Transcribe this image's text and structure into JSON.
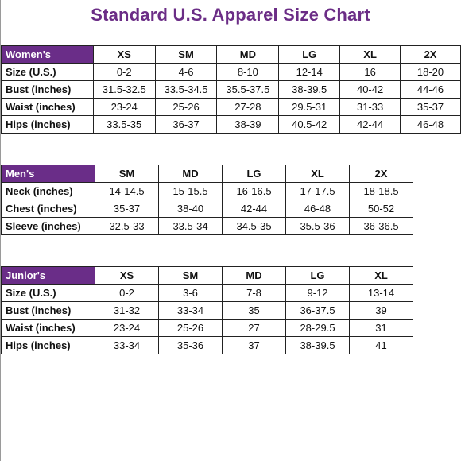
{
  "title": "Standard U.S. Apparel Size Chart",
  "accent_color": "#6a2d88",
  "women": {
    "section": "Women's",
    "sizes": [
      "XS",
      "SM",
      "MD",
      "LG",
      "XL",
      "2X"
    ],
    "rows": [
      {
        "label": "Size (U.S.)",
        "values": [
          "0-2",
          "4-6",
          "8-10",
          "12-14",
          "16",
          "18-20"
        ]
      },
      {
        "label": "Bust (inches)",
        "values": [
          "31.5-32.5",
          "33.5-34.5",
          "35.5-37.5",
          "38-39.5",
          "40-42",
          "44-46"
        ]
      },
      {
        "label": "Waist (inches)",
        "values": [
          "23-24",
          "25-26",
          "27-28",
          "29.5-31",
          "31-33",
          "35-37"
        ]
      },
      {
        "label": "Hips (inches)",
        "values": [
          "33.5-35",
          "36-37",
          "38-39",
          "40.5-42",
          "42-44",
          "46-48"
        ]
      }
    ]
  },
  "men": {
    "section": "Men's",
    "sizes": [
      "SM",
      "MD",
      "LG",
      "XL",
      "2X"
    ],
    "rows": [
      {
        "label": "Neck (inches)",
        "values": [
          "14-14.5",
          "15-15.5",
          "16-16.5",
          "17-17.5",
          "18-18.5"
        ]
      },
      {
        "label": "Chest (inches)",
        "values": [
          "35-37",
          "38-40",
          "42-44",
          "46-48",
          "50-52"
        ]
      },
      {
        "label": "Sleeve (inches)",
        "values": [
          "32.5-33",
          "33.5-34",
          "34.5-35",
          "35.5-36",
          "36-36.5"
        ]
      }
    ]
  },
  "junior": {
    "section": "Junior's",
    "sizes": [
      "XS",
      "SM",
      "MD",
      "LG",
      "XL"
    ],
    "rows": [
      {
        "label": "Size (U.S.)",
        "values": [
          "0-2",
          "3-6",
          "7-8",
          "9-12",
          "13-14"
        ]
      },
      {
        "label": "Bust (inches)",
        "values": [
          "31-32",
          "33-34",
          "35",
          "36-37.5",
          "39"
        ]
      },
      {
        "label": "Waist (inches)",
        "values": [
          "23-24",
          "25-26",
          "27",
          "28-29.5",
          "31"
        ]
      },
      {
        "label": "Hips (inches)",
        "values": [
          "33-34",
          "35-36",
          "37",
          "38-39.5",
          "41"
        ]
      }
    ]
  }
}
